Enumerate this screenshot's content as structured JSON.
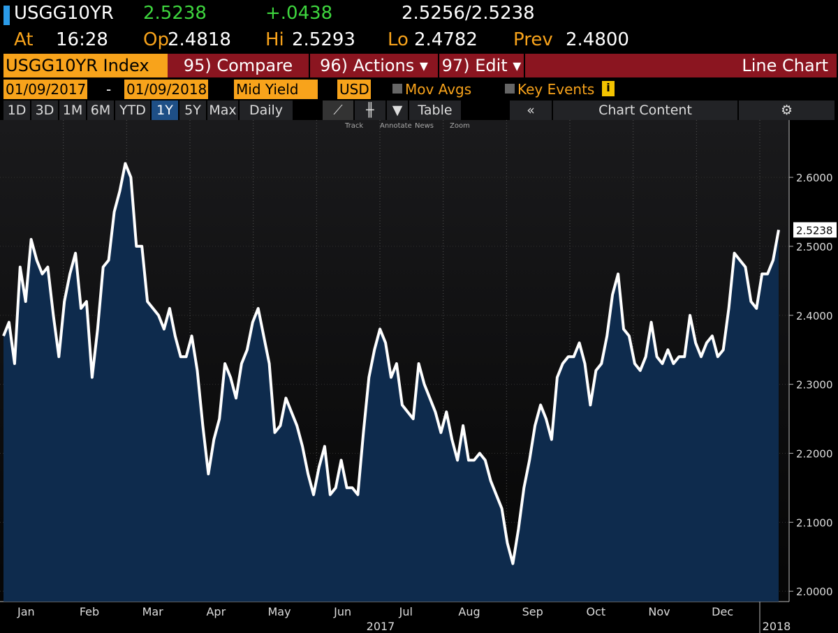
{
  "quote": {
    "ticker": "USGG10YR",
    "last": "2.5238",
    "change": "+.0438",
    "bid_ask": "2.5256/2.5238"
  },
  "stats": [
    {
      "label": "At",
      "value": "16:28"
    },
    {
      "label": "Op",
      "value": "2.4818"
    },
    {
      "label": "Hi",
      "value": "2.5293"
    },
    {
      "label": "Lo",
      "value": "2.4782"
    },
    {
      "label": "Prev",
      "value": "2.4800"
    }
  ],
  "toolbar": {
    "security": "USGG10YR Index",
    "menus": [
      "95) Compare",
      "96) Actions",
      "97) Edit"
    ],
    "view": "Line Chart"
  },
  "settings": {
    "start": "01/09/2017",
    "separator": "-",
    "end": "01/09/2018",
    "field": "Mid Yield",
    "currency": "USD",
    "toggles": [
      "Mov Avgs",
      "Key Events"
    ]
  },
  "ranges": [
    "1D",
    "3D",
    "1M",
    "6M",
    "YTD",
    "1Y",
    "5Y",
    "Max",
    "Daily"
  ],
  "selected_range": "1Y",
  "table_button": "Table",
  "chart_content": "Chart Content",
  "tools": [
    "Track",
    "Annotate",
    "News",
    "Zoom"
  ],
  "chart_data": {
    "type": "line",
    "color": "#ffffff",
    "area_color": "#0e2b4d",
    "values": [
      2.37,
      2.39,
      2.33,
      2.47,
      2.42,
      2.51,
      2.48,
      2.46,
      2.47,
      2.4,
      2.34,
      2.42,
      2.46,
      2.49,
      2.41,
      2.42,
      2.31,
      2.38,
      2.47,
      2.48,
      2.55,
      2.58,
      2.62,
      2.6,
      2.5,
      2.5,
      2.42,
      2.41,
      2.4,
      2.38,
      2.41,
      2.37,
      2.34,
      2.34,
      2.37,
      2.32,
      2.24,
      2.17,
      2.22,
      2.25,
      2.33,
      2.31,
      2.28,
      2.33,
      2.35,
      2.39,
      2.41,
      2.37,
      2.33,
      2.23,
      2.24,
      2.28,
      2.26,
      2.24,
      2.21,
      2.17,
      2.14,
      2.18,
      2.21,
      2.14,
      2.15,
      2.19,
      2.15,
      2.15,
      2.14,
      2.23,
      2.31,
      2.35,
      2.38,
      2.36,
      2.31,
      2.33,
      2.27,
      2.26,
      2.25,
      2.33,
      2.3,
      2.28,
      2.26,
      2.23,
      2.26,
      2.22,
      2.19,
      2.24,
      2.19,
      2.19,
      2.2,
      2.19,
      2.16,
      2.14,
      2.12,
      2.07,
      2.04,
      2.09,
      2.15,
      2.19,
      2.24,
      2.27,
      2.25,
      2.22,
      2.31,
      2.33,
      2.34,
      2.34,
      2.36,
      2.33,
      2.27,
      2.32,
      2.33,
      2.37,
      2.43,
      2.46,
      2.38,
      2.37,
      2.33,
      2.32,
      2.34,
      2.39,
      2.34,
      2.33,
      2.35,
      2.33,
      2.34,
      2.34,
      2.4,
      2.36,
      2.34,
      2.36,
      2.37,
      2.34,
      2.35,
      2.41,
      2.49,
      2.48,
      2.47,
      2.42,
      2.41,
      2.46,
      2.46,
      2.48,
      2.5238
    ],
    "month_labels": [
      "Jan",
      "Feb",
      "Mar",
      "Apr",
      "May",
      "Jun",
      "Jul",
      "Aug",
      "Sep",
      "Oct",
      "Nov",
      "Dec"
    ],
    "year_labels": [
      "2017",
      "2018"
    ],
    "ylim": [
      1.985,
      2.68
    ],
    "yticks": [
      {
        "value": 2.0,
        "label": "2.0000"
      },
      {
        "value": 2.1,
        "label": "2.1000"
      },
      {
        "value": 2.2,
        "label": "2.2000"
      },
      {
        "value": 2.3,
        "label": "2.3000"
      },
      {
        "value": 2.4,
        "label": "2.4000"
      },
      {
        "value": 2.5,
        "label": "2.5000"
      },
      {
        "value": 2.6,
        "label": "2.6000"
      }
    ],
    "grid": true
  }
}
